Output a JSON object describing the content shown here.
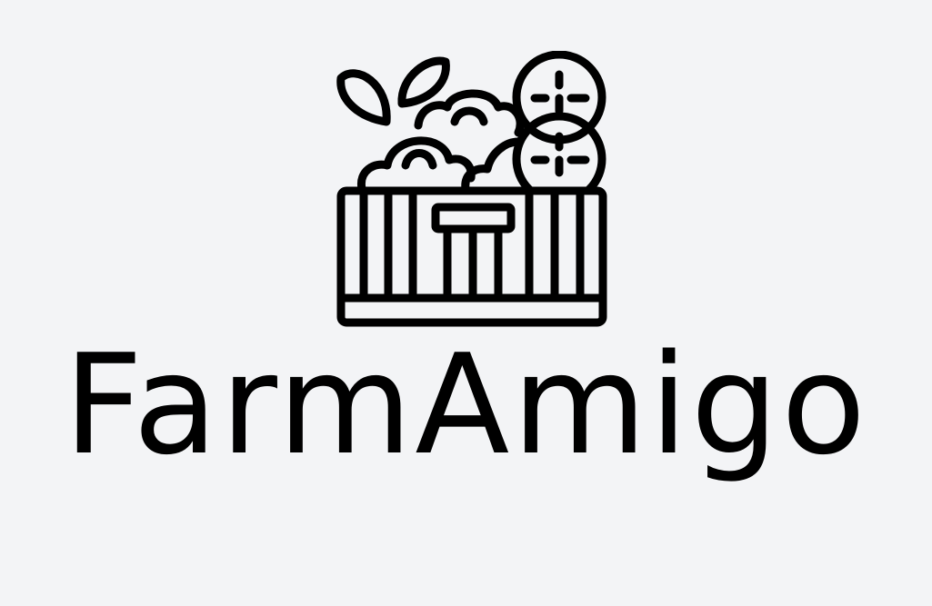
{
  "brand": {
    "name": "FarmAmigo",
    "icon": "produce-crate-icon"
  },
  "colors": {
    "background": "#f3f4f6",
    "ink": "#000000"
  }
}
